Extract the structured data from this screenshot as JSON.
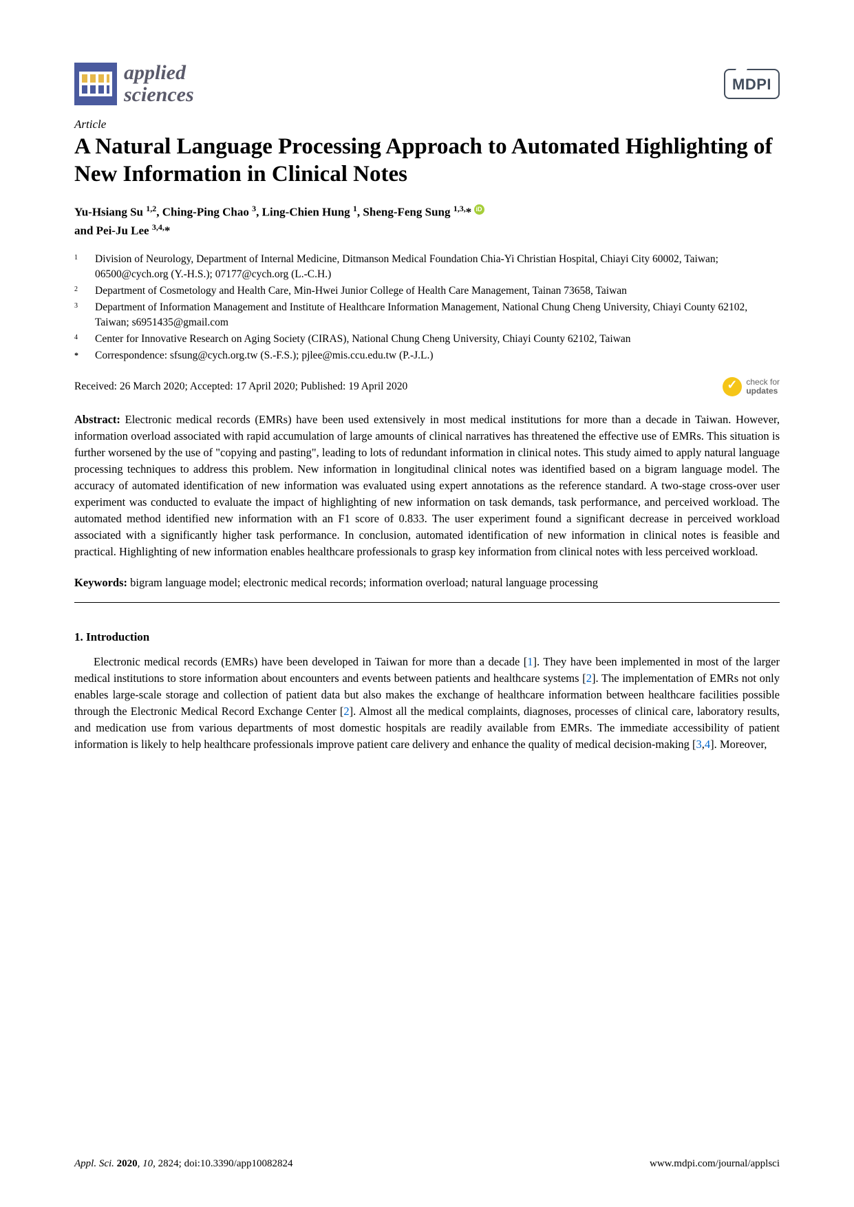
{
  "journal": {
    "name_line1": "applied",
    "name_line2": "sciences",
    "publisher": "MDPI"
  },
  "article_type": "Article",
  "title": "A Natural Language Processing Approach to Automated Highlighting of New Information in Clinical Notes",
  "authors_html": "Yu-Hsiang Su <sup>1,2</sup>, Ching-Ping Chao <sup>3</sup>, Ling-Chien Hung <sup>1</sup>, Sheng-Feng Sung <sup>1,3,</sup>* <span class=\"orcid\"></span><br>and Pei-Ju Lee <sup>3,4,</sup>*",
  "affiliations": [
    {
      "num": "1",
      "text": "Division of Neurology, Department of Internal Medicine, Ditmanson Medical Foundation Chia-Yi Christian Hospital, Chiayi City 60002, Taiwan; 06500@cych.org (Y.-H.S.); 07177@cych.org (L.-C.H.)"
    },
    {
      "num": "2",
      "text": "Department of Cosmetology and Health Care, Min-Hwei Junior College of Health Care Management, Tainan 73658, Taiwan"
    },
    {
      "num": "3",
      "text": "Department of Information Management and Institute of Healthcare Information Management, National Chung Cheng University, Chiayi County 62102, Taiwan; s6951435@gmail.com"
    },
    {
      "num": "4",
      "text": "Center for Innovative Research on Aging Society (CIRAS), National Chung Cheng University, Chiayi County 62102, Taiwan"
    },
    {
      "num": "*",
      "text": "Correspondence: sfsung@cych.org.tw (S.-F.S.); pjlee@mis.ccu.edu.tw (P.-J.L.)"
    }
  ],
  "dates": "Received: 26 March 2020; Accepted: 17 April 2020; Published: 19 April 2020",
  "check_updates": {
    "line1": "check for",
    "line2": "updates"
  },
  "abstract_label": "Abstract:",
  "abstract": "Electronic medical records (EMRs) have been used extensively in most medical institutions for more than a decade in Taiwan. However, information overload associated with rapid accumulation of large amounts of clinical narratives has threatened the effective use of EMRs. This situation is further worsened by the use of \"copying and pasting\", leading to lots of redundant information in clinical notes. This study aimed to apply natural language processing techniques to address this problem. New information in longitudinal clinical notes was identified based on a bigram language model. The accuracy of automated identification of new information was evaluated using expert annotations as the reference standard. A two-stage cross-over user experiment was conducted to evaluate the impact of highlighting of new information on task demands, task performance, and perceived workload. The automated method identified new information with an F1 score of 0.833. The user experiment found a significant decrease in perceived workload associated with a significantly higher task performance. In conclusion, automated identification of new information in clinical notes is feasible and practical. Highlighting of new information enables healthcare professionals to grasp key information from clinical notes with less perceived workload.",
  "keywords_label": "Keywords:",
  "keywords": "bigram language model; electronic medical records; information overload; natural language processing",
  "section1_heading": "1. Introduction",
  "introduction": "Electronic medical records (EMRs) have been developed in Taiwan for more than a decade [1]. They have been implemented in most of the larger medical institutions to store information about encounters and events between patients and healthcare systems [2]. The implementation of EMRs not only enables large-scale storage and collection of patient data but also makes the exchange of healthcare information between healthcare facilities possible through the Electronic Medical Record Exchange Center [2]. Almost all the medical complaints, diagnoses, processes of clinical care, laboratory results, and medication use from various departments of most domestic hospitals are readily available from EMRs. The immediate accessibility of patient information is likely to help healthcare professionals improve patient care delivery and enhance the quality of medical decision-making [3,4]. Moreover,",
  "footer": {
    "left_italic": "Appl. Sci.",
    "left_rest": " 2020, 10, 2824; doi:10.3390/app10082824",
    "right": "www.mdpi.com/journal/applsci"
  },
  "refs": {
    "r1": "1",
    "r2": "2",
    "r3": "3",
    "r4": "4"
  },
  "colors": {
    "logo_bg": "#4a5a9e",
    "ref_color": "#0066cc",
    "orcid": "#a6ce39",
    "check": "#f5c518",
    "mdpi_border": "#424d5c"
  }
}
